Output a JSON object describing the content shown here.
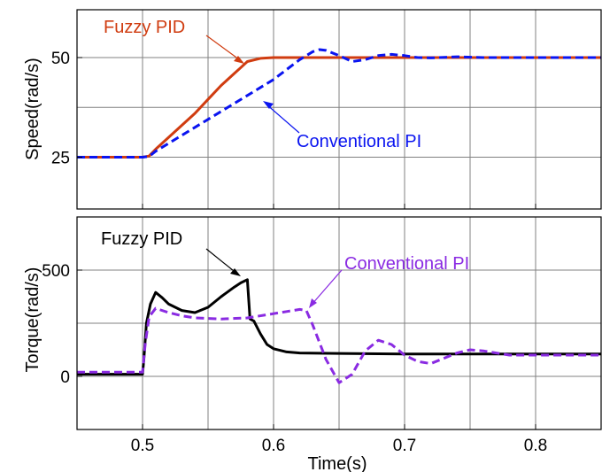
{
  "chart_data": [
    {
      "type": "line",
      "ylabel": "Speed(rad/s)",
      "xlim": [
        0.45,
        0.85
      ],
      "ylim": [
        12,
        62
      ],
      "xticks": [
        0.5,
        0.6,
        0.7,
        0.8
      ],
      "yticks": [
        25,
        50
      ],
      "grid": true,
      "annotations": [
        {
          "text": "Fuzzy PID",
          "color": "#d03c10"
        },
        {
          "text": "Conventional PI",
          "color": "#0a14f0"
        }
      ],
      "series": [
        {
          "name": "Fuzzy PID",
          "color": "#d03c10",
          "style": "solid",
          "x": [
            0.45,
            0.5,
            0.505,
            0.51,
            0.52,
            0.53,
            0.54,
            0.55,
            0.56,
            0.57,
            0.575,
            0.58,
            0.59,
            0.6,
            0.62,
            0.64,
            0.66,
            0.7,
            0.75,
            0.8,
            0.85
          ],
          "y": [
            25,
            25,
            25.3,
            27.0,
            30.0,
            33.0,
            36.0,
            39.5,
            43.0,
            46.0,
            47.5,
            49.0,
            49.8,
            50,
            50,
            50,
            50,
            50,
            50,
            50,
            50
          ]
        },
        {
          "name": "Conventional PI",
          "color": "#0a14f0",
          "style": "dashed",
          "x": [
            0.45,
            0.5,
            0.505,
            0.51,
            0.52,
            0.53,
            0.54,
            0.55,
            0.56,
            0.57,
            0.58,
            0.59,
            0.6,
            0.61,
            0.62,
            0.63,
            0.635,
            0.64,
            0.65,
            0.66,
            0.67,
            0.68,
            0.69,
            0.7,
            0.71,
            0.72,
            0.74,
            0.76,
            0.78,
            0.8,
            0.85
          ],
          "y": [
            25,
            25,
            25.2,
            26.5,
            28.5,
            30.5,
            32.5,
            34.5,
            36.5,
            38.5,
            40.5,
            42.5,
            44.5,
            47.0,
            49.5,
            51.5,
            52.0,
            51.8,
            50.5,
            49.0,
            49.5,
            50.5,
            50.8,
            50.5,
            50.0,
            49.9,
            50.2,
            50.0,
            50.0,
            50.0,
            50.0
          ]
        }
      ]
    },
    {
      "type": "line",
      "xlabel": "Time(s)",
      "ylabel": "Torque(rad/s)",
      "xlim": [
        0.45,
        0.85
      ],
      "ylim": [
        -250,
        750
      ],
      "xticks": [
        0.5,
        0.6,
        0.7,
        0.8
      ],
      "yticks": [
        0,
        500
      ],
      "grid": true,
      "annotations": [
        {
          "text": "Fuzzy PID",
          "color": "#000000"
        },
        {
          "text": "Conventional PI",
          "color": "#8a2be2"
        }
      ],
      "series": [
        {
          "name": "Fuzzy PID",
          "color": "#000000",
          "style": "solid",
          "x": [
            0.45,
            0.5,
            0.501,
            0.503,
            0.506,
            0.51,
            0.515,
            0.52,
            0.53,
            0.54,
            0.55,
            0.56,
            0.57,
            0.575,
            0.58,
            0.582,
            0.585,
            0.59,
            0.595,
            0.6,
            0.61,
            0.62,
            0.65,
            0.7,
            0.75,
            0.8,
            0.85
          ],
          "y": [
            10,
            10,
            80,
            250,
            340,
            395,
            370,
            340,
            310,
            300,
            325,
            375,
            420,
            440,
            455,
            270,
            260,
            200,
            150,
            130,
            115,
            110,
            108,
            105,
            105,
            105,
            105
          ]
        },
        {
          "name": "Conventional PI",
          "color": "#8a2be2",
          "style": "dashed",
          "x": [
            0.45,
            0.5,
            0.502,
            0.505,
            0.51,
            0.52,
            0.53,
            0.54,
            0.56,
            0.58,
            0.6,
            0.61,
            0.62,
            0.625,
            0.63,
            0.64,
            0.65,
            0.66,
            0.67,
            0.68,
            0.69,
            0.7,
            0.71,
            0.72,
            0.73,
            0.74,
            0.75,
            0.76,
            0.78,
            0.8,
            0.85
          ],
          "y": [
            20,
            20,
            150,
            280,
            320,
            300,
            285,
            275,
            270,
            275,
            295,
            305,
            315,
            310,
            240,
            80,
            -30,
            10,
            120,
            170,
            150,
            100,
            70,
            60,
            85,
            110,
            125,
            120,
            100,
            100,
            100
          ]
        }
      ]
    }
  ]
}
